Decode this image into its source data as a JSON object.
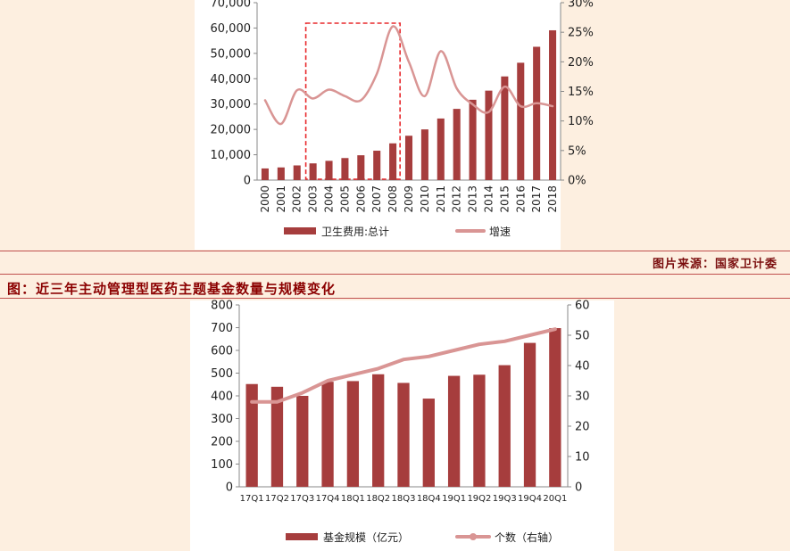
{
  "source_text": "图片来源：国家卫计委",
  "figure_title": "图：近三年主动管理型医药主题基金数量与规模变化",
  "chart_data": [
    {
      "type": "bar",
      "categories": [
        "2000",
        "2001",
        "2002",
        "2003",
        "2004",
        "2005",
        "2006",
        "2007",
        "2008",
        "2009",
        "2010",
        "2011",
        "2012",
        "2013",
        "2014",
        "2015",
        "2016",
        "2017",
        "2018"
      ],
      "series": [
        {
          "name": "卫生费用:总计",
          "type": "bar",
          "axis": "left",
          "values": [
            4600,
            5000,
            5800,
            6600,
            7600,
            8700,
            9800,
            11600,
            14500,
            17500,
            20000,
            24300,
            28100,
            31700,
            35300,
            40900,
            46300,
            52600,
            59100
          ]
        },
        {
          "name": "增速",
          "type": "line",
          "axis": "right",
          "values": [
            13.5,
            9.5,
            15.2,
            13.8,
            15.3,
            14.2,
            13.5,
            18.0,
            26.0,
            20.0,
            14.2,
            21.8,
            15.5,
            12.8,
            11.5,
            15.8,
            12.5,
            13.0,
            12.5
          ]
        }
      ],
      "ylim_left": [
        0,
        70000
      ],
      "ylim_right": [
        0,
        30
      ],
      "left_ticks": [
        "0",
        "10,000",
        "20,000",
        "30,000",
        "40,000",
        "50,000",
        "60,000",
        "70,000"
      ],
      "right_ticks": [
        "0%",
        "5%",
        "10%",
        "15%",
        "20%",
        "25%",
        "30%"
      ],
      "highlight_range": [
        "2003",
        "2008"
      ],
      "legend_position": "bottom"
    },
    {
      "type": "bar",
      "categories": [
        "17Q1",
        "17Q2",
        "17Q3",
        "17Q4",
        "18Q1",
        "18Q2",
        "18Q3",
        "18Q4",
        "19Q1",
        "19Q2",
        "19Q3",
        "19Q4",
        "20Q1"
      ],
      "series": [
        {
          "name": "基金规模（亿元）",
          "type": "bar",
          "axis": "left",
          "values": [
            452,
            440,
            400,
            462,
            465,
            495,
            457,
            388,
            488,
            493,
            535,
            633,
            698
          ]
        },
        {
          "name": "个数（右轴）",
          "type": "line",
          "axis": "right",
          "values": [
            28,
            28,
            31,
            35,
            37,
            39,
            42,
            43,
            45,
            47,
            48,
            50,
            52
          ]
        }
      ],
      "ylim_left": [
        0,
        800
      ],
      "ylim_right": [
        0,
        60
      ],
      "left_ticks": [
        "0",
        "100",
        "200",
        "300",
        "400",
        "500",
        "600",
        "700",
        "800"
      ],
      "right_ticks": [
        "0",
        "10",
        "20",
        "30",
        "40",
        "50",
        "60"
      ],
      "legend_position": "bottom"
    }
  ]
}
